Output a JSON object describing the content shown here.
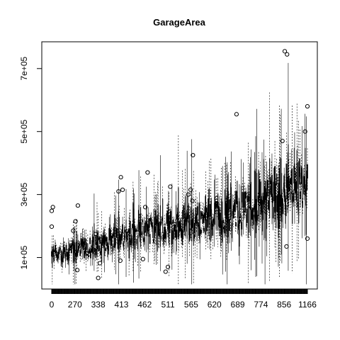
{
  "chart_data": {
    "type": "boxplot",
    "title": "GarageArea",
    "xlabel": "",
    "ylabel": "",
    "x_tick_labels": [
      "0",
      "270",
      "338",
      "413",
      "462",
      "511",
      "565",
      "620",
      "689",
      "774",
      "856",
      "1166"
    ],
    "y_ticks": [
      {
        "value": 100000,
        "label": "1e+05"
      },
      {
        "value": 300000,
        "label": "3e+05"
      },
      {
        "value": 500000,
        "label": "5e+05"
      },
      {
        "value": 700000,
        "label": "7e+05"
      }
    ],
    "ylim": [
      0,
      785000
    ],
    "x_category_count": 441,
    "median_trend": [
      {
        "x": 0,
        "y": 105000
      },
      {
        "x": 270,
        "y": 125000
      },
      {
        "x": 338,
        "y": 135000
      },
      {
        "x": 413,
        "y": 165000
      },
      {
        "x": 462,
        "y": 185000
      },
      {
        "x": 511,
        "y": 200000
      },
      {
        "x": 565,
        "y": 205000
      },
      {
        "x": 620,
        "y": 225000
      },
      {
        "x": 689,
        "y": 245000
      },
      {
        "x": 774,
        "y": 280000
      },
      {
        "x": 856,
        "y": 300000
      },
      {
        "x": 1166,
        "y": 320000
      }
    ],
    "outliers": [
      {
        "group": "0",
        "y": 248000
      },
      {
        "group": "0",
        "y": 260000
      },
      {
        "group": "0",
        "y": 198000
      },
      {
        "group": "270",
        "y": 265000
      },
      {
        "group": "270",
        "y": 215000
      },
      {
        "group": "270",
        "y": 185000
      },
      {
        "group": "270",
        "y": 60000
      },
      {
        "group": "338",
        "y": 35000
      },
      {
        "group": "338",
        "y": 175000
      },
      {
        "group": "338",
        "y": 82000
      },
      {
        "group": "413",
        "y": 355000
      },
      {
        "group": "413",
        "y": 310000
      },
      {
        "group": "413",
        "y": 315000
      },
      {
        "group": "413",
        "y": 90000
      },
      {
        "group": "462",
        "y": 370000
      },
      {
        "group": "462",
        "y": 260000
      },
      {
        "group": "462",
        "y": 95000
      },
      {
        "group": "511",
        "y": 325000
      },
      {
        "group": "511",
        "y": 70000
      },
      {
        "group": "511",
        "y": 55000
      },
      {
        "group": "565",
        "y": 425000
      },
      {
        "group": "565",
        "y": 315000
      },
      {
        "group": "565",
        "y": 300000
      },
      {
        "group": "565",
        "y": 280000
      },
      {
        "group": "689",
        "y": 555000
      },
      {
        "group": "856",
        "y": 745000
      },
      {
        "group": "856",
        "y": 755000
      },
      {
        "group": "856",
        "y": 470000
      },
      {
        "group": "856",
        "y": 135000
      },
      {
        "group": "1166",
        "y": 580000
      },
      {
        "group": "1166",
        "y": 500000
      },
      {
        "group": "1166",
        "y": 160000
      }
    ],
    "grid": false,
    "legend": "none"
  }
}
